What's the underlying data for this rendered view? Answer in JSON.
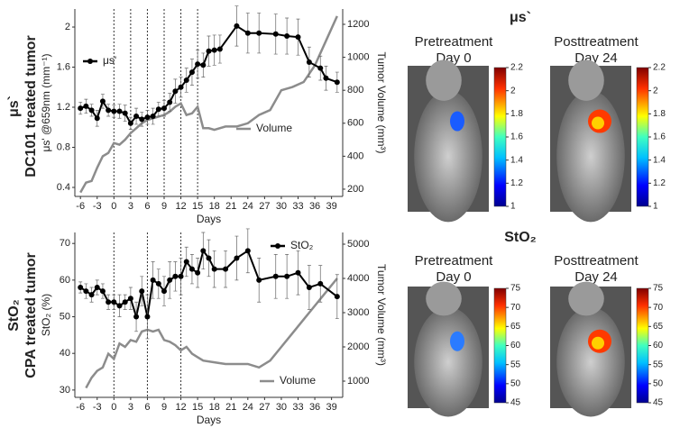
{
  "chart_data": [
    {
      "type": "line",
      "x_label": "Days",
      "y_label": "μs' @659nm (mm⁻¹)",
      "y2_label": "Tumor Volume (mm³)",
      "xlim": [
        -7,
        41
      ],
      "xticks": [
        -6,
        -3,
        0,
        3,
        6,
        9,
        12,
        15,
        18,
        21,
        24,
        27,
        30,
        33,
        36,
        39
      ],
      "ylim": [
        0.31,
        2.18
      ],
      "yticks": [
        0.4,
        0.8,
        1.2,
        1.6,
        2.0
      ],
      "y2lim": [
        156,
        1293
      ],
      "y2ticks": [
        200,
        400,
        600,
        800,
        1000,
        1200
      ],
      "vlines": [
        0,
        3,
        6,
        9,
        12,
        15
      ],
      "series": [
        {
          "name": "μs'",
          "color": "#000000",
          "x": [
            -6,
            -5,
            -4,
            -3,
            -2,
            -1,
            0,
            1,
            2,
            3,
            4,
            5,
            6,
            7,
            8,
            9,
            10,
            11,
            12,
            13,
            14,
            15,
            16,
            17,
            18,
            19,
            22,
            24,
            26,
            29,
            31,
            33,
            35,
            37,
            38,
            40
          ],
          "values": [
            1.19,
            1.21,
            1.17,
            1.09,
            1.26,
            1.17,
            1.16,
            1.16,
            1.14,
            1.04,
            1.11,
            1.08,
            1.1,
            1.11,
            1.18,
            1.19,
            1.25,
            1.36,
            1.4,
            1.47,
            1.55,
            1.63,
            1.62,
            1.76,
            1.77,
            1.78,
            2.01,
            1.94,
            1.94,
            1.93,
            1.91,
            1.9,
            1.65,
            1.59,
            1.49,
            1.45
          ],
          "errors": [
            0.06,
            0.07,
            0.06,
            0.08,
            0.07,
            0.06,
            0.06,
            0.07,
            0.08,
            0.06,
            0.08,
            0.07,
            0.07,
            0.08,
            0.07,
            0.08,
            0.09,
            0.12,
            0.1,
            0.12,
            0.13,
            0.14,
            0.12,
            0.15,
            0.15,
            0.14,
            0.2,
            0.2,
            0.2,
            0.2,
            0.18,
            0.18,
            0.15,
            0.12,
            0.12,
            0.1
          ]
        },
        {
          "name": "Volume",
          "color": "#8c8c8c",
          "axis": "y2",
          "x": [
            -6,
            -5,
            -4,
            -3,
            -2,
            -1,
            0,
            1,
            2,
            3,
            4,
            5,
            6,
            7,
            8,
            9,
            10,
            11,
            12,
            13,
            14,
            15,
            16,
            17,
            18,
            20,
            22,
            24,
            26,
            28,
            30,
            32,
            34,
            36,
            38,
            40
          ],
          "values": [
            180,
            240,
            250,
            330,
            400,
            420,
            480,
            470,
            500,
            540,
            570,
            600,
            620,
            630,
            640,
            650,
            670,
            700,
            720,
            650,
            660,
            700,
            570,
            570,
            560,
            580,
            580,
            600,
            650,
            680,
            800,
            820,
            850,
            950,
            1100,
            1250
          ]
        }
      ]
    },
    {
      "type": "line",
      "x_label": "Days",
      "y_label": "StO₂ (%)",
      "y2_label": "Tumor Volume (mm³)",
      "xlim": [
        -7,
        41
      ],
      "xticks": [
        -6,
        -3,
        0,
        3,
        6,
        9,
        12,
        15,
        18,
        21,
        24,
        27,
        30,
        33,
        36,
        39
      ],
      "ylim": [
        28,
        73
      ],
      "yticks": [
        30,
        40,
        50,
        60,
        70
      ],
      "y2lim": [
        526,
        5342
      ],
      "y2ticks": [
        1000,
        2000,
        3000,
        4000,
        5000
      ],
      "vlines": [
        0,
        6,
        12
      ],
      "series": [
        {
          "name": "StO₂",
          "color": "#000000",
          "x": [
            -6,
            -5,
            -4,
            -3,
            -2,
            -1,
            0,
            1,
            2,
            3,
            4,
            5,
            6,
            7,
            8,
            9,
            10,
            11,
            12,
            13,
            14,
            15,
            16,
            17,
            18,
            20,
            22,
            24,
            26,
            29,
            31,
            33,
            35,
            37,
            40
          ],
          "values": [
            58,
            57,
            56,
            58,
            57,
            54,
            54,
            53,
            54,
            55,
            50,
            57,
            50,
            60,
            59,
            57,
            60,
            61,
            61,
            65,
            63,
            62,
            68,
            66,
            63,
            63,
            66,
            68,
            60,
            61,
            61,
            62,
            58,
            59,
            55.5
          ],
          "errors": [
            1.5,
            2,
            2,
            2,
            2,
            2,
            2,
            3,
            2,
            3,
            4,
            4,
            6,
            5,
            4,
            4,
            5,
            4,
            5,
            4,
            4,
            4,
            5,
            5,
            5,
            5,
            6,
            6,
            6,
            6,
            6,
            6,
            6,
            5,
            6
          ]
        },
        {
          "name": "Volume",
          "color": "#8c8c8c",
          "axis": "y2",
          "x": [
            -5,
            -4,
            -3,
            -2,
            -1,
            0,
            1,
            2,
            3,
            4,
            5,
            6,
            7,
            8,
            9,
            10,
            11,
            12,
            13,
            14,
            15,
            16,
            18,
            20,
            22,
            24,
            26,
            28,
            30,
            32,
            34,
            36,
            38,
            40
          ],
          "values": [
            800,
            1100,
            1300,
            1400,
            1800,
            1650,
            2100,
            2000,
            2200,
            2150,
            2450,
            2500,
            2450,
            2500,
            2200,
            2150,
            2050,
            1900,
            2000,
            1800,
            1700,
            1600,
            1550,
            1500,
            1500,
            1500,
            1400,
            1600,
            2000,
            2400,
            2800,
            3200,
            3600,
            4000
          ]
        }
      ]
    }
  ],
  "row_labels": [
    {
      "symbol": "μs`",
      "text": "DC101 treated tumor"
    },
    {
      "symbol": "StO₂",
      "text": "CPA treated tumor"
    }
  ],
  "image_panels": [
    {
      "title": "μs`",
      "images": [
        {
          "label": "Pretreatment",
          "day": "Day 0"
        },
        {
          "label": "Posttreatment",
          "day": "Day 24"
        }
      ],
      "colorbar_ticks": [
        2.2,
        2,
        1.8,
        1.6,
        1.4,
        1.2,
        1
      ]
    },
    {
      "title": "StO₂",
      "images": [
        {
          "label": "Pretreatment",
          "day": "Day 0"
        },
        {
          "label": "Posttreatment",
          "day": "Day 24"
        }
      ],
      "colorbar_ticks": [
        75,
        70,
        65,
        60,
        55,
        50,
        45
      ]
    }
  ]
}
